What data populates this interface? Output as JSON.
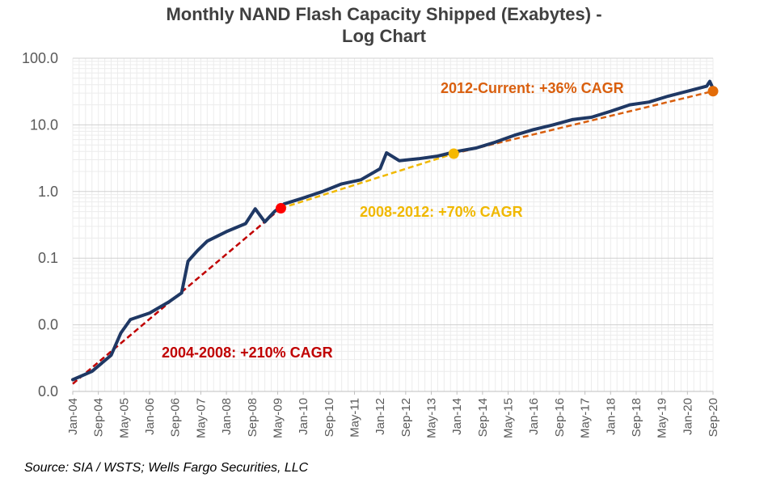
{
  "chart_data": {
    "type": "line",
    "title": [
      "Monthly NAND Flash Capacity Shipped (Exabytes) -",
      "Log Chart"
    ],
    "xlabel": "",
    "ylabel": "",
    "y_scale": "log",
    "ylim": [
      0.001,
      100
    ],
    "y_tick_values": [
      0.001,
      0.01,
      0.1,
      1,
      10,
      100
    ],
    "y_tick_labels": [
      "0.0",
      "0.0",
      "0.1",
      "1.0",
      "10.0",
      "100.0"
    ],
    "x_tick_labels": [
      "Jan-04",
      "Sep-04",
      "May-05",
      "Jan-06",
      "Sep-06",
      "May-07",
      "Jan-08",
      "Sep-08",
      "May-09",
      "Jan-10",
      "Sep-10",
      "May-11",
      "Jan-12",
      "Sep-12",
      "May-13",
      "Jan-14",
      "Sep-14",
      "May-15",
      "Jan-16",
      "Sep-16",
      "May-17",
      "Jan-18",
      "Sep-18",
      "May-19",
      "Jan-20",
      "Sep-20"
    ],
    "x_range": [
      "Jan-04",
      "Sep-20"
    ],
    "grid": true,
    "series": [
      {
        "color": "#1F3864",
        "x": [
          "Jan-04",
          "Jul-04",
          "Jan-05",
          "Apr-05",
          "Jul-05",
          "Jan-06",
          "Jul-06",
          "Nov-06",
          "Jan-07",
          "Apr-07",
          "Jul-07",
          "Jan-08",
          "Jul-08",
          "Oct-08",
          "Jan-09",
          "Apr-09",
          "Jul-09",
          "Jan-10",
          "Jul-10",
          "Jan-11",
          "Jul-11",
          "Jan-12",
          "Mar-12",
          "Jul-12",
          "Jan-13",
          "Jul-13",
          "Jan-14",
          "Jul-14",
          "Jan-15",
          "Jul-15",
          "Jan-16",
          "Jul-16",
          "Jan-17",
          "Jul-17",
          "Jan-18",
          "Jul-18",
          "Jan-19",
          "Jul-19",
          "Jan-20",
          "Jul-20",
          "Aug-20",
          "Sep-20"
        ],
        "y": [
          0.0015,
          0.002,
          0.0035,
          0.0075,
          0.012,
          0.015,
          0.022,
          0.03,
          0.09,
          0.13,
          0.18,
          0.25,
          0.33,
          0.55,
          0.35,
          0.5,
          0.65,
          0.8,
          1.0,
          1.3,
          1.5,
          2.2,
          3.8,
          2.9,
          3.1,
          3.4,
          4.0,
          4.5,
          5.5,
          7.0,
          8.5,
          10.0,
          12.0,
          13.0,
          16.0,
          20.0,
          22.0,
          27.0,
          32.0,
          38.0,
          45.0,
          35.0
        ]
      }
    ],
    "trend_lines": [
      {
        "label": "2004-2008: +210% CAGR",
        "color": "#C00000",
        "x": [
          "Jan-04",
          "Jun-09"
        ],
        "y": [
          0.0013,
          0.56
        ]
      },
      {
        "label": "2008-2012: +70% CAGR",
        "color": "#F0B800",
        "x": [
          "Jun-09",
          "Dec-13"
        ],
        "y": [
          0.56,
          3.7
        ]
      },
      {
        "label": "2012-Current: +36% CAGR",
        "color": "#D95F0E",
        "x": [
          "Dec-13",
          "Sep-20"
        ],
        "y": [
          3.7,
          32
        ]
      }
    ],
    "markers": [
      {
        "x": "Jun-09",
        "y": 0.56,
        "color": "#FF0000"
      },
      {
        "x": "Dec-13",
        "y": 3.7,
        "color": "#F5B800"
      },
      {
        "x": "Sep-20",
        "y": 32,
        "color": "#E36C09"
      }
    ]
  },
  "source": "Source: SIA / WSTS; Wells Fargo Securities, LLC"
}
